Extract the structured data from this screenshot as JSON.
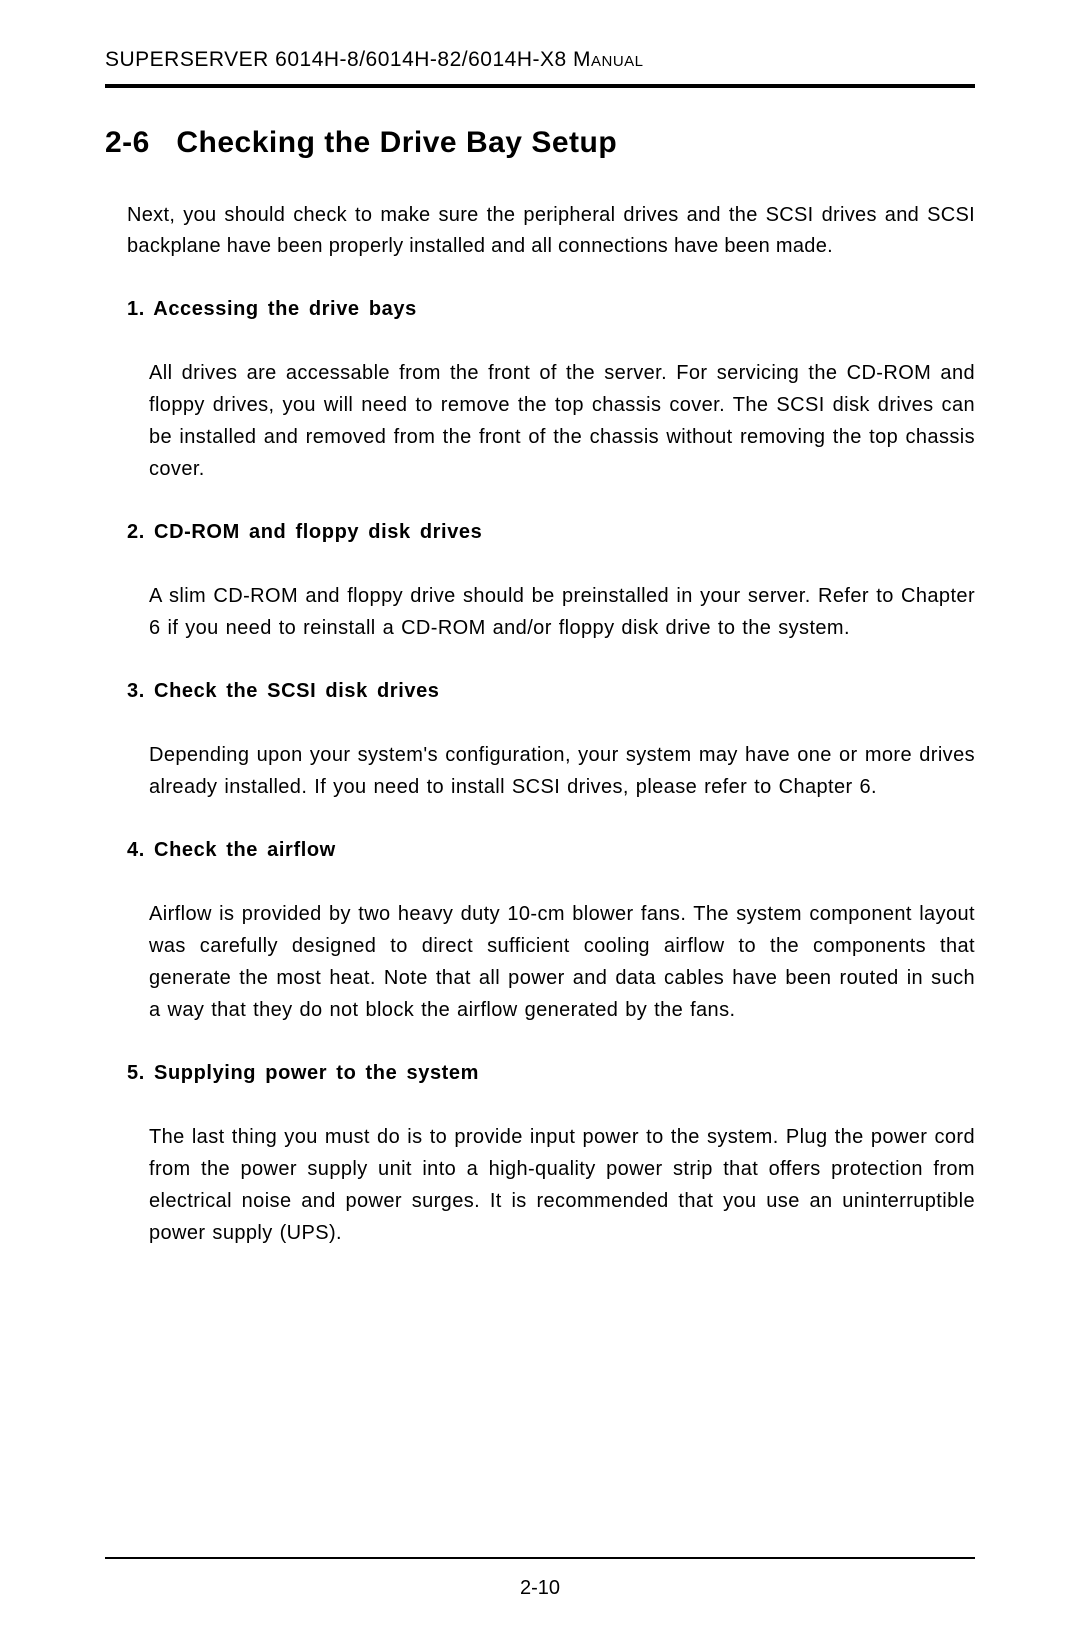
{
  "header": "SUPERSERVER 6014H-8/6014H-82/6014H-X8 Manual",
  "section_number_label": "2-6",
  "section_title_text": "Checking the Drive Bay Setup",
  "intro": "Next, you should check to make sure the peripheral drives and the SCSI drives and SCSI backplane have been properly installed and all connections have been made.",
  "items": [
    {
      "title": "1. Accessing the drive bays",
      "body": "All drives are accessable from the front of the server.  For servicing the CD-ROM and floppy drives, you will need to remove the top chassis cover.  The SCSI disk drives can be installed and removed from the front of the chassis without removing the top chassis cover."
    },
    {
      "title": "2. CD-ROM and floppy disk drives",
      "body": "A slim CD-ROM and floppy drive should be preinstalled in your server.  Refer to Chapter 6 if you need to reinstall a CD-ROM and/or floppy disk drive to the system."
    },
    {
      "title": "3. Check the SCSI disk drives",
      "body": "Depending upon your system's configuration, your system may have one or more drives already installed.  If you need to install SCSI drives, please refer to Chapter 6."
    },
    {
      "title": "4. Check the airflow",
      "body": "Airflow is provided by two heavy duty 10-cm blower fans.  The system component layout was carefully designed to direct sufficient cooling airflow to the components that generate the most heat.  Note that all power and data cables have been routed in such a way that they do not block the airflow generated by the fans."
    },
    {
      "title": "5. Supplying power to the system",
      "body": "The last thing you must do is to provide  input power to the system.  Plug the power cord from the power supply unit into a high-quality power strip that offers protection from electrical noise and power surges.  It is recommended that you use an uninterruptible power supply (UPS)."
    }
  ],
  "page_number": "2-10"
}
